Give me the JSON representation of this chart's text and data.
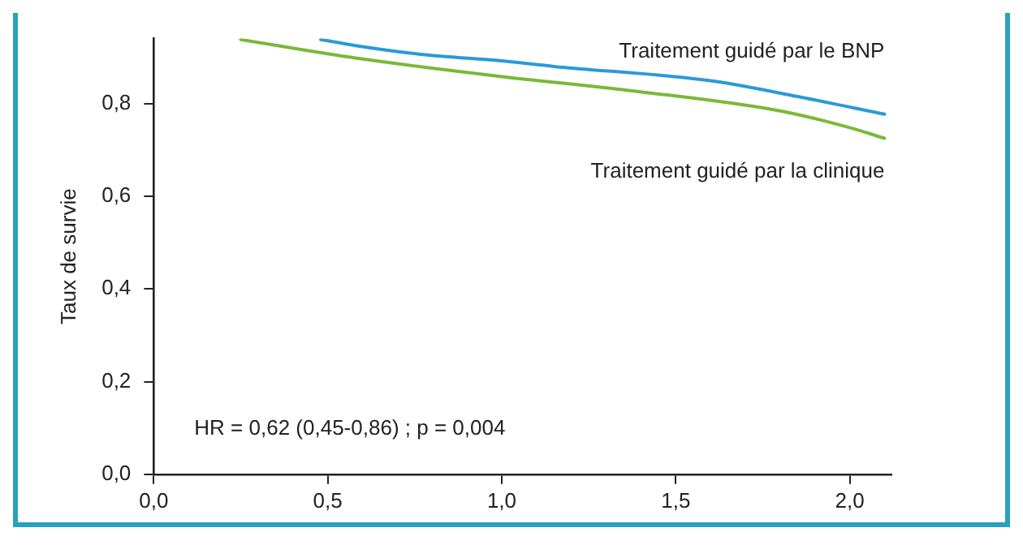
{
  "chart_data": {
    "type": "line",
    "ylabel": "Taux de survie",
    "legend": false,
    "grid": false,
    "marker": "none",
    "line_style": "solid",
    "xlim": [
      0,
      2.12
    ],
    "ylim": [
      0,
      0.94
    ],
    "xticks": [
      {
        "value": 0,
        "label": "0,0"
      },
      {
        "value": 0.5,
        "label": "0,5"
      },
      {
        "value": 1,
        "label": "1,0"
      },
      {
        "value": 1.5,
        "label": "1,5"
      },
      {
        "value": 2,
        "label": "2,0"
      }
    ],
    "yticks": [
      {
        "value": 0,
        "label": "0,0"
      },
      {
        "value": 0.2,
        "label": "0,2"
      },
      {
        "value": 0.4,
        "label": "0,4"
      },
      {
        "value": 0.6,
        "label": "0,6"
      },
      {
        "value": 0.8,
        "label": "0,8"
      }
    ],
    "series": [
      {
        "name": "Traitement guidé par le BNP",
        "color": "#2b9ad6",
        "x": [
          0.48,
          0.58,
          0.78,
          1.0,
          1.15,
          1.6,
          1.85,
          2.1
        ],
        "values": [
          0.938,
          0.925,
          0.905,
          0.892,
          0.88,
          0.849,
          0.815,
          0.777
        ]
      },
      {
        "name": "Traitement guidé par la clinique",
        "color": "#7ab83a",
        "x": [
          0.25,
          0.58,
          0.99,
          1.39,
          1.8,
          2.0,
          2.1
        ],
        "values": [
          0.938,
          0.898,
          0.859,
          0.826,
          0.784,
          0.748,
          0.725
        ]
      }
    ],
    "annotations": [
      "HR = 0,62 (0,45-0,86) ; p = 0,004"
    ]
  }
}
